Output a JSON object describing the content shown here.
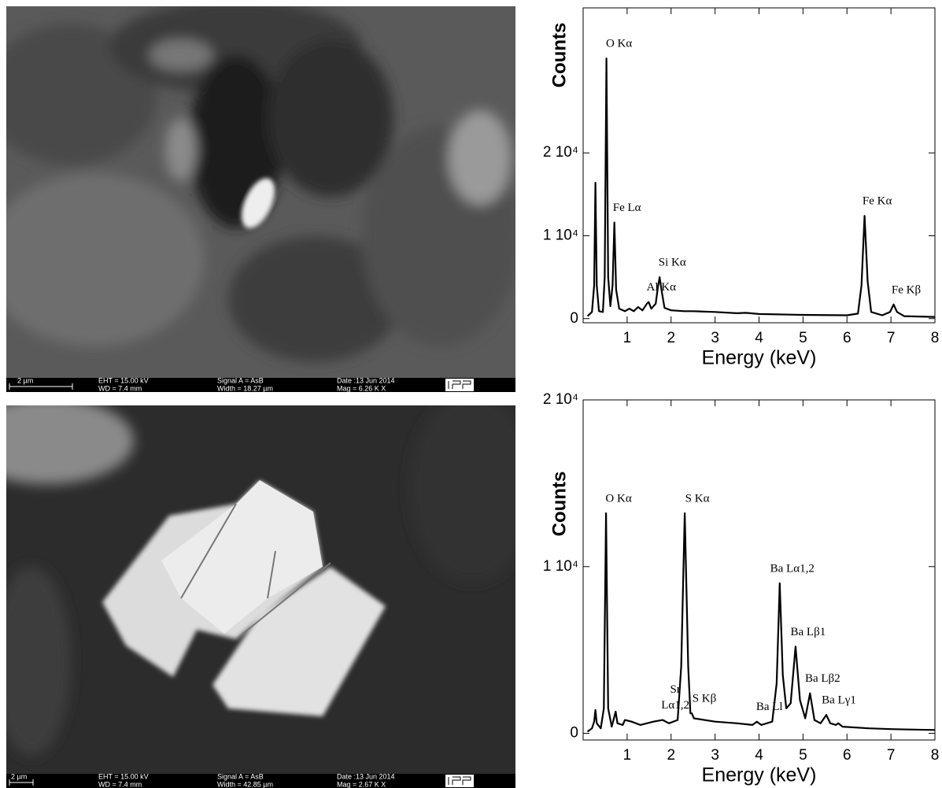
{
  "images": [
    {
      "scale_bar": "2 µm",
      "eht": "EHT = 15.00 kV",
      "wd": "WD = 7.4 mm",
      "signal": "Signal A = AsB",
      "width": "Width = 18.27 µm",
      "date": "Date :13 Jun 2014",
      "mag": "Mag =  6.26 K X"
    },
    {
      "scale_bar": "2 µm",
      "eht": "EHT = 15.00 kV",
      "wd": "WD = 7.4 mm",
      "signal": "Signal A = AsB",
      "width": "Width = 42.85 µm",
      "date": "Date :13 Jun 2014",
      "mag": "Mag =  2.67 K X"
    }
  ],
  "chart_data": [
    {
      "type": "line",
      "xlabel": "Energy (keV)",
      "ylabel": "Counts",
      "color": "#000000",
      "xlim": [
        0,
        8
      ],
      "ylim": [
        -500,
        37500
      ],
      "xticks": [
        1,
        2,
        3,
        4,
        5,
        6,
        7,
        8
      ],
      "yticks": [
        0,
        {
          "value": 10000,
          "label": "1 10⁴"
        },
        {
          "value": 20000,
          "label": "2 10⁴"
        }
      ],
      "x": [
        0.1,
        0.2,
        0.25,
        0.28,
        0.31,
        0.36,
        0.45,
        0.49,
        0.53,
        0.57,
        0.62,
        0.67,
        0.71,
        0.75,
        0.82,
        0.95,
        1.05,
        1.15,
        1.25,
        1.35,
        1.45,
        1.49,
        1.55,
        1.65,
        1.7,
        1.74,
        1.78,
        1.85,
        2.0,
        2.3,
        2.5,
        3.0,
        3.5,
        3.7,
        4.0,
        5.0,
        6.0,
        6.25,
        6.33,
        6.4,
        6.47,
        6.55,
        6.8,
        6.98,
        7.06,
        7.14,
        7.3,
        8.0
      ],
      "values": [
        300,
        800,
        4000,
        16400,
        4000,
        900,
        800,
        5000,
        31400,
        5000,
        1500,
        4000,
        11600,
        3500,
        1200,
        900,
        1200,
        900,
        1400,
        1000,
        1800,
        2000,
        1200,
        1800,
        3800,
        5000,
        3500,
        1300,
        1000,
        900,
        900,
        800,
        650,
        700,
        550,
        450,
        400,
        600,
        4000,
        12400,
        4500,
        800,
        400,
        800,
        1700,
        800,
        300,
        200
      ],
      "annotations": [
        {
          "text": [
            "O Kα"
          ],
          "x": 0.53,
          "y": 31400
        },
        {
          "text": [
            "Fe Lα"
          ],
          "x": 0.71,
          "y": 11600
        },
        {
          "text": [
            "Al Kα"
          ],
          "x": 1.49,
          "y": 2000
        },
        {
          "text": [
            "Si Kα"
          ],
          "x": 1.74,
          "y": 5000
        },
        {
          "text": [
            "Fe Kα"
          ],
          "x": 6.4,
          "y": 12400
        },
        {
          "text": [
            "Fe Kβ"
          ],
          "x": 7.06,
          "y": 1700
        }
      ]
    },
    {
      "type": "line",
      "xlabel": "Energy (keV)",
      "ylabel": "Counts",
      "color": "#000000",
      "xlim": [
        0,
        8
      ],
      "ylim": [
        -400,
        20000
      ],
      "xticks": [
        1,
        2,
        3,
        4,
        5,
        6,
        7,
        8
      ],
      "yticks": [
        0,
        {
          "value": 10000,
          "label": "1 10⁴"
        },
        {
          "value": 20000,
          "label": "2 10⁴"
        }
      ],
      "x": [
        0.1,
        0.2,
        0.25,
        0.28,
        0.31,
        0.4,
        0.47,
        0.52,
        0.57,
        0.65,
        0.7,
        0.74,
        0.78,
        0.9,
        0.95,
        1.1,
        1.3,
        1.6,
        1.81,
        1.95,
        2.15,
        2.23,
        2.31,
        2.39,
        2.44,
        2.47,
        2.52,
        3.0,
        3.5,
        3.85,
        3.95,
        4.05,
        4.3,
        4.4,
        4.47,
        4.54,
        4.62,
        4.72,
        4.83,
        4.93,
        5.05,
        5.16,
        5.26,
        5.4,
        5.53,
        5.62,
        5.75,
        5.8,
        5.9,
        6.5,
        7.0,
        8.0
      ],
      "values": [
        100,
        300,
        700,
        1400,
        600,
        300,
        1500,
        13200,
        1500,
        400,
        900,
        1300,
        600,
        500,
        800,
        700,
        500,
        700,
        800,
        600,
        800,
        4000,
        13200,
        4000,
        1200,
        1200,
        900,
        700,
        600,
        500,
        700,
        500,
        700,
        3000,
        9000,
        3500,
        1500,
        1800,
        5200,
        2000,
        900,
        2400,
        800,
        600,
        1100,
        600,
        500,
        600,
        400,
        300,
        250,
        200
      ],
      "annotations": [
        {
          "text": [
            "O Kα"
          ],
          "x": 0.52,
          "y": 13200
        },
        {
          "text": [
            "S Kα"
          ],
          "x": 2.31,
          "y": 13200
        },
        {
          "text": [
            "Sr",
            "Lα1,2"
          ],
          "x": 1.81,
          "y": 800
        },
        {
          "text": [
            "S Kβ"
          ],
          "x": 2.47,
          "y": 1200
        },
        {
          "text": [
            "Ba Ll"
          ],
          "x": 3.95,
          "y": 700
        },
        {
          "text": [
            "Ba Lα1,2"
          ],
          "x": 4.47,
          "y": 9000
        },
        {
          "text": [
            "Ba Lβ1"
          ],
          "x": 4.83,
          "y": 5200
        },
        {
          "text": [
            "Ba Lβ2"
          ],
          "x": 5.16,
          "y": 2400
        },
        {
          "text": [
            "Ba Lγ1"
          ],
          "x": 5.53,
          "y": 1100
        }
      ]
    }
  ]
}
